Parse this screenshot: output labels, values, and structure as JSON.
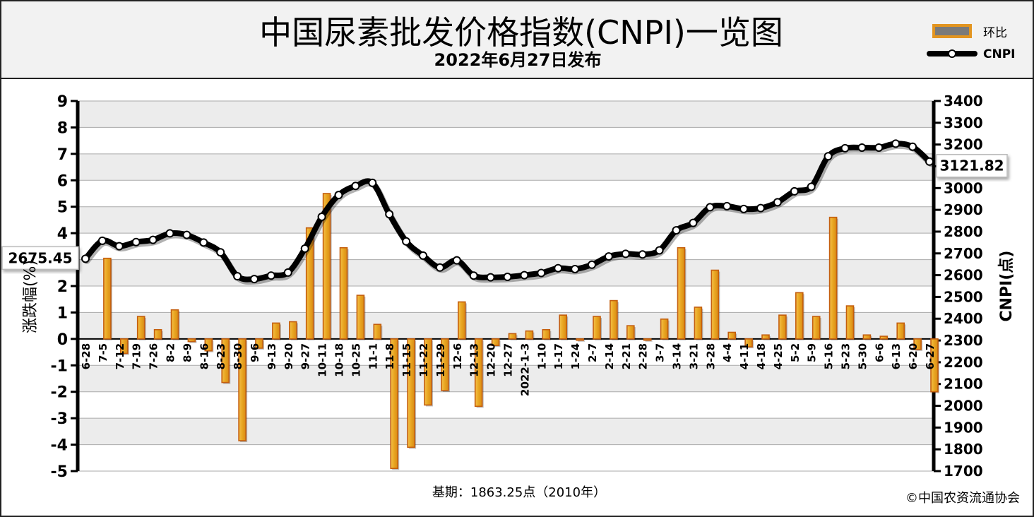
{
  "chart_data": {
    "type": "bar",
    "title": "中国尿素批发价格指数(CNPI)一览图",
    "subtitle": "2022年6月27日发布",
    "legend": {
      "placement": "top-right",
      "bar_label": "环比",
      "line_label": "CNPI"
    },
    "y_left": {
      "label": "涨跌幅(%)",
      "min": -5,
      "max": 9,
      "ticks": [
        9,
        8,
        7,
        6,
        5,
        4,
        3,
        2,
        1,
        0,
        -1,
        -2,
        -3,
        -4,
        -5
      ]
    },
    "y_right": {
      "label": "CNPI(点)",
      "min": 1700,
      "max": 3400,
      "ticks": [
        3400,
        3300,
        3200,
        3100,
        3000,
        2900,
        2800,
        2700,
        2600,
        2500,
        2400,
        2300,
        2200,
        2100,
        2000,
        1900,
        1800,
        1700
      ]
    },
    "grid": true,
    "categories": [
      "6-28",
      "7-5",
      "7-12",
      "7-19",
      "7-26",
      "8-2",
      "8-9",
      "8-16",
      "8-23",
      "8-30",
      "9-6",
      "9-13",
      "9-20",
      "9-27",
      "10-11",
      "10-18",
      "10-25",
      "11-1",
      "11-8",
      "11-15",
      "11-22",
      "11-29",
      "12-6",
      "12-13",
      "12-20",
      "12-27",
      "2022-1-3",
      "1-10",
      "1-17",
      "1-24",
      "2-7",
      "2-14",
      "2-21",
      "2-28",
      "3-7",
      "3-14",
      "3-21",
      "3-28",
      "4-4",
      "4-11",
      "4-18",
      "4-25",
      "5-2",
      "5-9",
      "5-16",
      "5-23",
      "5-30",
      "6-6",
      "6-13",
      "6-20",
      "6-27"
    ],
    "series": [
      {
        "name": "环比",
        "type": "bar",
        "axis": "left",
        "values": [
          0,
          3.05,
          -0.55,
          0.85,
          0.35,
          1.1,
          -0.1,
          -0.45,
          -1.65,
          -3.85,
          -0.35,
          0.6,
          0.65,
          4.2,
          5.5,
          3.45,
          1.65,
          0.55,
          -4.9,
          -4.1,
          -2.5,
          -1.95,
          1.4,
          -2.55,
          -0.25,
          0.2,
          0.3,
          0.35,
          0.9,
          -0.05,
          0.85,
          1.45,
          0.5,
          -0.05,
          0.75,
          3.45,
          1.2,
          2.6,
          0.25,
          -0.3,
          0.15,
          0.9,
          1.75,
          0.85,
          4.6,
          1.25,
          0.15,
          0.1,
          0.6,
          -0.4,
          -2.0
        ]
      },
      {
        "name": "CNPI",
        "type": "line",
        "axis": "right",
        "values": [
          2675.45,
          2758,
          2733,
          2752,
          2762,
          2792,
          2785,
          2750,
          2705,
          2595,
          2582,
          2598,
          2612,
          2722,
          2868,
          2968,
          3010,
          3024,
          2880,
          2755,
          2690,
          2635,
          2668,
          2598,
          2590,
          2592,
          2600,
          2610,
          2632,
          2628,
          2648,
          2686,
          2698,
          2695,
          2714,
          2806,
          2840,
          2912,
          2917,
          2904,
          2908,
          2935,
          2985,
          3006,
          3146,
          3183,
          3186,
          3186,
          3204,
          3190,
          3121.82
        ]
      }
    ],
    "annotations": [
      {
        "text": "2675.45",
        "series": "CNPI",
        "category": "6-28"
      },
      {
        "text": "3121.82",
        "series": "CNPI",
        "category": "6-27"
      }
    ]
  },
  "footer": {
    "base_period": "基期：1863.25点（2010年）",
    "credit": "©中国农资流通协会"
  },
  "colors": {
    "bar_fill": "#e8a520",
    "bar_edge": "#c45e0d",
    "line": "#000000",
    "marker_fill": "#ffffff",
    "grid": "#aaaaaa",
    "header_bg": "#f2f2f2",
    "plot_band": "#ececec"
  }
}
